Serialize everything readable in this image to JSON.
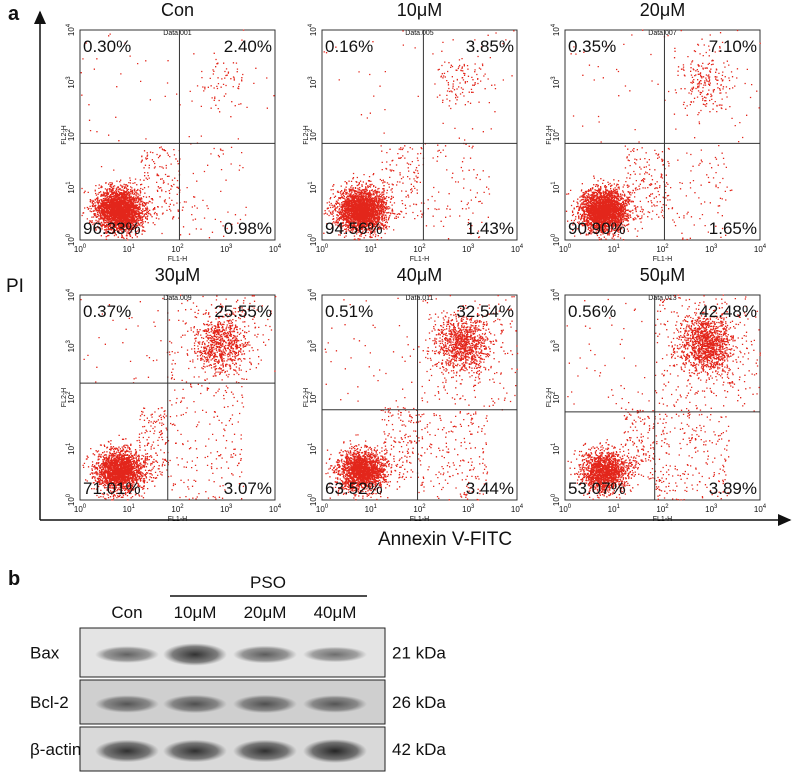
{
  "panel_a": {
    "label": "a",
    "y_axis_label": "PI",
    "x_axis_label": "Annexin V-FITC",
    "plot_x_label": "FL1-H",
    "plot_y_label": "FL2-H",
    "tick_base": "10",
    "tick_exponents": [
      "0",
      "1",
      "2",
      "3",
      "4"
    ],
    "plots": [
      {
        "title": "Con",
        "file": "Data.001",
        "upper_left": "0.30%",
        "upper_right": "2.40%",
        "lower_left": "96.33%",
        "lower_right": "0.98%"
      },
      {
        "title": "10μM",
        "file": "Data.005",
        "upper_left": "0.16%",
        "upper_right": "3.85%",
        "lower_left": "94.56%",
        "lower_right": "1.43%"
      },
      {
        "title": "20μM",
        "file": "Data.007",
        "upper_left": "0.35%",
        "upper_right": "7.10%",
        "lower_left": "90.90%",
        "lower_right": "1.65%"
      },
      {
        "title": "30μM",
        "file": "Data.009",
        "upper_left": "0.37%",
        "upper_right": "25.55%",
        "lower_left": "71.01%",
        "lower_right": "3.07%"
      },
      {
        "title": "40μM",
        "file": "Data.011",
        "upper_left": "0.51%",
        "upper_right": "32.54%",
        "lower_left": "63.52%",
        "lower_right": "3.44%"
      },
      {
        "title": "50μM",
        "file": "Data.013",
        "upper_left": "0.56%",
        "upper_right": "42.48%",
        "lower_left": "53.07%",
        "lower_right": "3.89%"
      }
    ]
  },
  "panel_b": {
    "label": "b",
    "group": "PSO",
    "lanes": [
      "Con",
      "10μM",
      "20μM",
      "40μM"
    ],
    "rows": [
      {
        "name": "Bax",
        "size": "21 kDa"
      },
      {
        "name": "Bcl-2",
        "size": "26 kDa"
      },
      {
        "name": "β-actin",
        "size": "42 kDa"
      }
    ]
  }
}
